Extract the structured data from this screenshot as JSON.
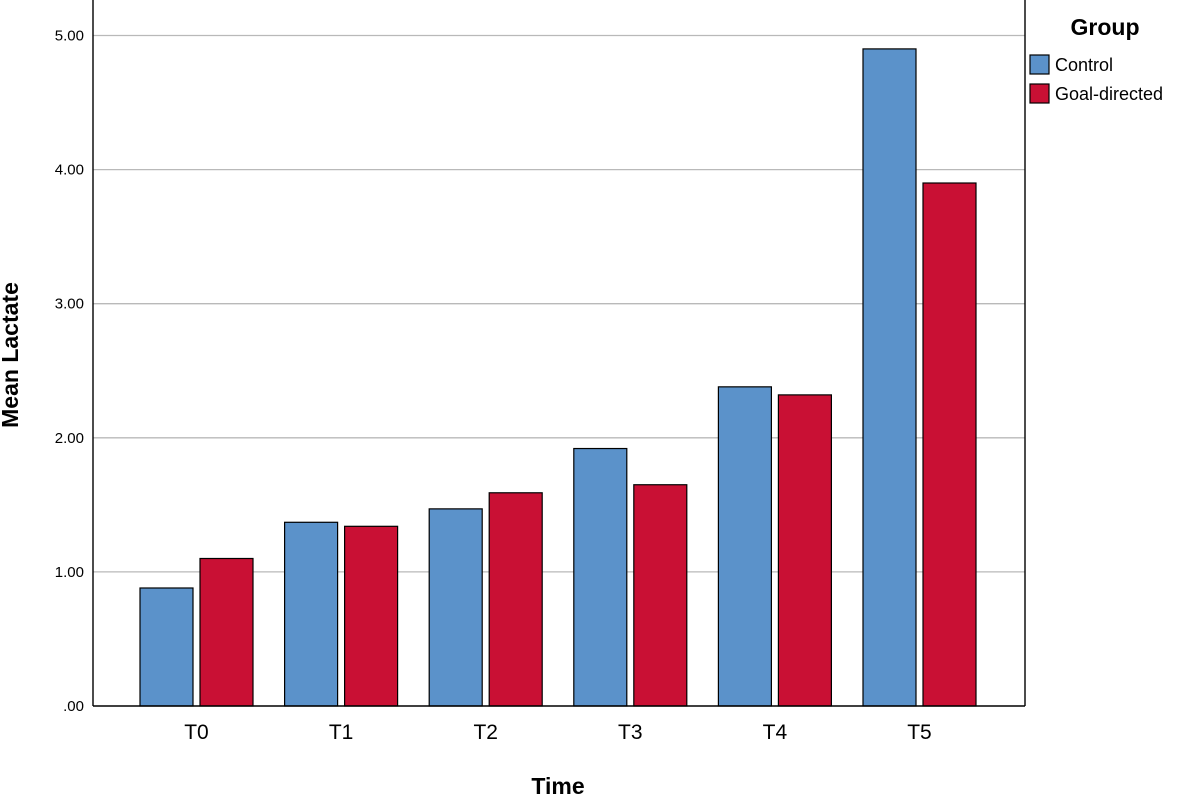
{
  "chart_data": {
    "type": "bar",
    "xlabel": "Time",
    "ylabel": "Mean Lactate",
    "categories": [
      "T0",
      "T1",
      "T2",
      "T3",
      "T4",
      "T5"
    ],
    "series": [
      {
        "name": "Control",
        "color": "#5b92ca",
        "values": [
          0.88,
          1.37,
          1.47,
          1.92,
          2.38,
          4.9
        ]
      },
      {
        "name": "Goal-directed",
        "color": "#c91034",
        "values": [
          1.1,
          1.34,
          1.59,
          1.65,
          2.32,
          3.9
        ]
      }
    ],
    "ylim": [
      0,
      5.25
    ],
    "yticks": [
      0,
      1,
      2,
      3,
      4,
      5
    ],
    "ytick_labels": [
      ".00",
      "1.00",
      "2.00",
      "3.00",
      "4.00",
      "5.00"
    ],
    "grid": true,
    "legend": {
      "title": "Group",
      "position": "top-right"
    }
  }
}
